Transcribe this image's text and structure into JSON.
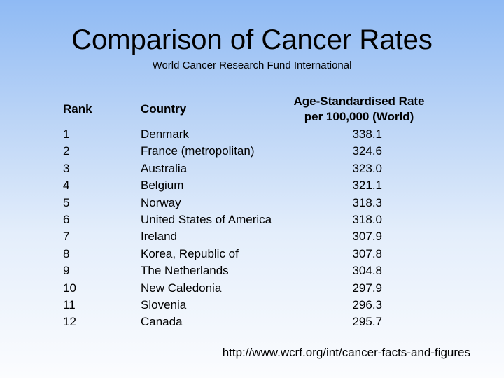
{
  "slide": {
    "title": "Comparison of Cancer Rates",
    "subtitle": "World Cancer Research Fund International",
    "source": "http://www.wcrf.org/int/cancer-facts-and-figures"
  },
  "table": {
    "headers": {
      "rank": "Rank",
      "country": "Country",
      "rate_line1": "Age-Standardised Rate",
      "rate_line2": "per 100,000 (World)"
    },
    "rows": [
      {
        "rank": "1",
        "country": "Denmark",
        "rate": "338.1"
      },
      {
        "rank": "2",
        "country": "France (metropolitan)",
        "rate": "324.6"
      },
      {
        "rank": "3",
        "country": "Australia",
        "rate": "323.0"
      },
      {
        "rank": "4",
        "country": "Belgium",
        "rate": "321.1"
      },
      {
        "rank": "5",
        "country": "Norway",
        "rate": "318.3"
      },
      {
        "rank": "6",
        "country": "United States of America",
        "rate": "318.0"
      },
      {
        "rank": "7",
        "country": "Ireland",
        "rate": "307.9"
      },
      {
        "rank": "8",
        "country": "Korea, Republic of",
        "rate": "307.8"
      },
      {
        "rank": "9",
        "country": "The Netherlands",
        "rate": "304.8"
      },
      {
        "rank": "10",
        "country": "New Caledonia",
        "rate": "297.9"
      },
      {
        "rank": "11",
        "country": "Slovenia",
        "rate": "296.3"
      },
      {
        "rank": "12",
        "country": "Canada",
        "rate": "295.7"
      }
    ]
  },
  "colors": {
    "background_top": "#8fbaf4",
    "background_bottom": "#fbfcfe",
    "text": "#000000"
  }
}
